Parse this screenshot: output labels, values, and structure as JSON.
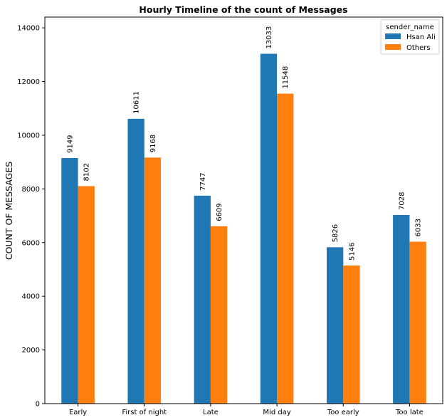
{
  "chart_data": {
    "type": "bar",
    "title": "Hourly Timeline of the count of Messages",
    "xlabel": "",
    "ylabel": "COUNT OF MESSAGES",
    "categories": [
      "Early",
      "First of night",
      "Late",
      "Mid day",
      "Too early",
      "Too late"
    ],
    "series": [
      {
        "name": "Hsan Ali",
        "color": "#1f77b4",
        "values": [
          9149,
          10611,
          7747,
          13033,
          5826,
          7028
        ]
      },
      {
        "name": "Others",
        "color": "#ff7f0e",
        "values": [
          8102,
          9168,
          6609,
          11548,
          5146,
          6033
        ]
      }
    ],
    "ylim": [
      0,
      14400
    ],
    "yticks": [
      0,
      2000,
      4000,
      6000,
      8000,
      10000,
      12000,
      14000
    ],
    "grid": false,
    "legend": {
      "title": "sender_name",
      "placement": "top-right"
    },
    "data_labels": true
  }
}
